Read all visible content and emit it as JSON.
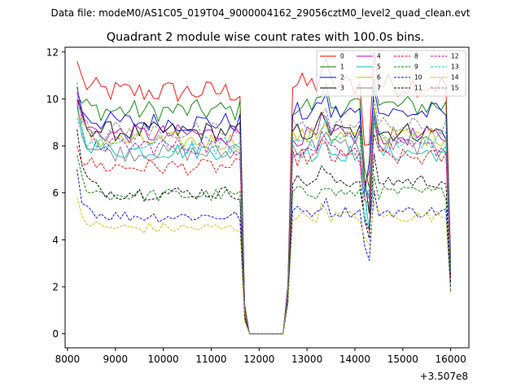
{
  "chart_data": {
    "type": "line",
    "suptitle": "Data file: modeM0/AS1C05_019T04_9000004162_29056cztM0_level2_quad_clean.evt",
    "title": "Quadrant 2 module wise count rates with 100.0s bins.",
    "xlabel": "",
    "ylabel": "",
    "x_offset_label": "+3.507e8",
    "xlim": [
      7950,
      16380
    ],
    "ylim": [
      -0.6,
      12.2
    ],
    "xticks": [
      8000,
      9000,
      10000,
      11000,
      12000,
      13000,
      14000,
      15000,
      16000
    ],
    "xtick_labels": [
      "8000",
      "9000",
      "10000",
      "11000",
      "12000",
      "13000",
      "14000",
      "15000",
      "16000"
    ],
    "yticks": [
      0,
      2,
      4,
      6,
      8,
      10,
      12
    ],
    "ytick_labels": [
      "0",
      "2",
      "4",
      "6",
      "8",
      "10",
      "12"
    ],
    "legend_position": "upper right",
    "legend_columns": 4,
    "segments": {
      "first": {
        "x_start": 8200,
        "x_end": 11600,
        "step": 100
      },
      "drop": [
        {
          "x": 11700,
          "fraction": 0.12
        },
        {
          "x": 11800,
          "fraction": 0.0
        }
      ],
      "zero": {
        "x_start": 11800,
        "x_end": 12500,
        "value": 0
      },
      "rise": [
        {
          "x": 12600,
          "fraction": 0.15
        }
      ],
      "second": {
        "x_start": 12700,
        "x_end": 15900,
        "step": 100
      },
      "end": {
        "x": 16000,
        "fraction": 0.28
      }
    },
    "series": [
      {
        "name": "0",
        "color": "#ff0000",
        "dash": "solid",
        "level1": 10.3,
        "level2": 10.6,
        "start": 11.6
      },
      {
        "name": "1",
        "color": "#008000",
        "dash": "solid",
        "level1": 9.5,
        "level2": 9.7,
        "start": 10.2
      },
      {
        "name": "2",
        "color": "#0000ff",
        "dash": "solid",
        "level1": 9.0,
        "level2": 9.4,
        "start": 10.5
      },
      {
        "name": "3",
        "color": "#000000",
        "dash": "solid",
        "level1": 8.6,
        "level2": 8.6,
        "start": 10.0
      },
      {
        "name": "4",
        "color": "#bf00bf",
        "dash": "solid",
        "level1": 8.5,
        "level2": 8.4,
        "start": 9.9
      },
      {
        "name": "5",
        "color": "#00bfbf",
        "dash": "solid",
        "level1": 7.8,
        "level2": 7.7,
        "start": 9.8
      },
      {
        "name": "6",
        "color": "#bfbf00",
        "dash": "solid",
        "level1": 8.2,
        "level2": 8.4,
        "start": 9.6
      },
      {
        "name": "7",
        "color": "#808080",
        "dash": "solid",
        "level1": 7.7,
        "level2": 8.0,
        "start": 9.7
      },
      {
        "name": "8",
        "color": "#ff0000",
        "dash": "dashed",
        "level1": 7.1,
        "level2": 7.5,
        "start": 8.0
      },
      {
        "name": "9",
        "color": "#008000",
        "dash": "dashed",
        "level1": 5.9,
        "level2": 6.0,
        "start": 7.6
      },
      {
        "name": "10",
        "color": "#0000ff",
        "dash": "dashed",
        "level1": 5.0,
        "level2": 5.2,
        "start": 7.0
      },
      {
        "name": "11",
        "color": "#000000",
        "dash": "dashed",
        "level1": 6.0,
        "level2": 6.5,
        "start": 8.7
      },
      {
        "name": "12",
        "color": "#bf00bf",
        "dash": "dashed",
        "level1": 8.0,
        "level2": 7.9,
        "start": 10.3
      },
      {
        "name": "13",
        "color": "#00bfbf",
        "dash": "dashed",
        "level1": 8.0,
        "level2": 8.3,
        "start": 9.2
      },
      {
        "name": "14",
        "color": "#bfbf00",
        "dash": "dashed",
        "level1": 4.5,
        "level2": 5.0,
        "start": 5.8
      },
      {
        "name": "15",
        "color": "#808080",
        "dash": "dashed",
        "level1": 8.6,
        "level2": 8.8,
        "start": 10.7
      }
    ]
  }
}
